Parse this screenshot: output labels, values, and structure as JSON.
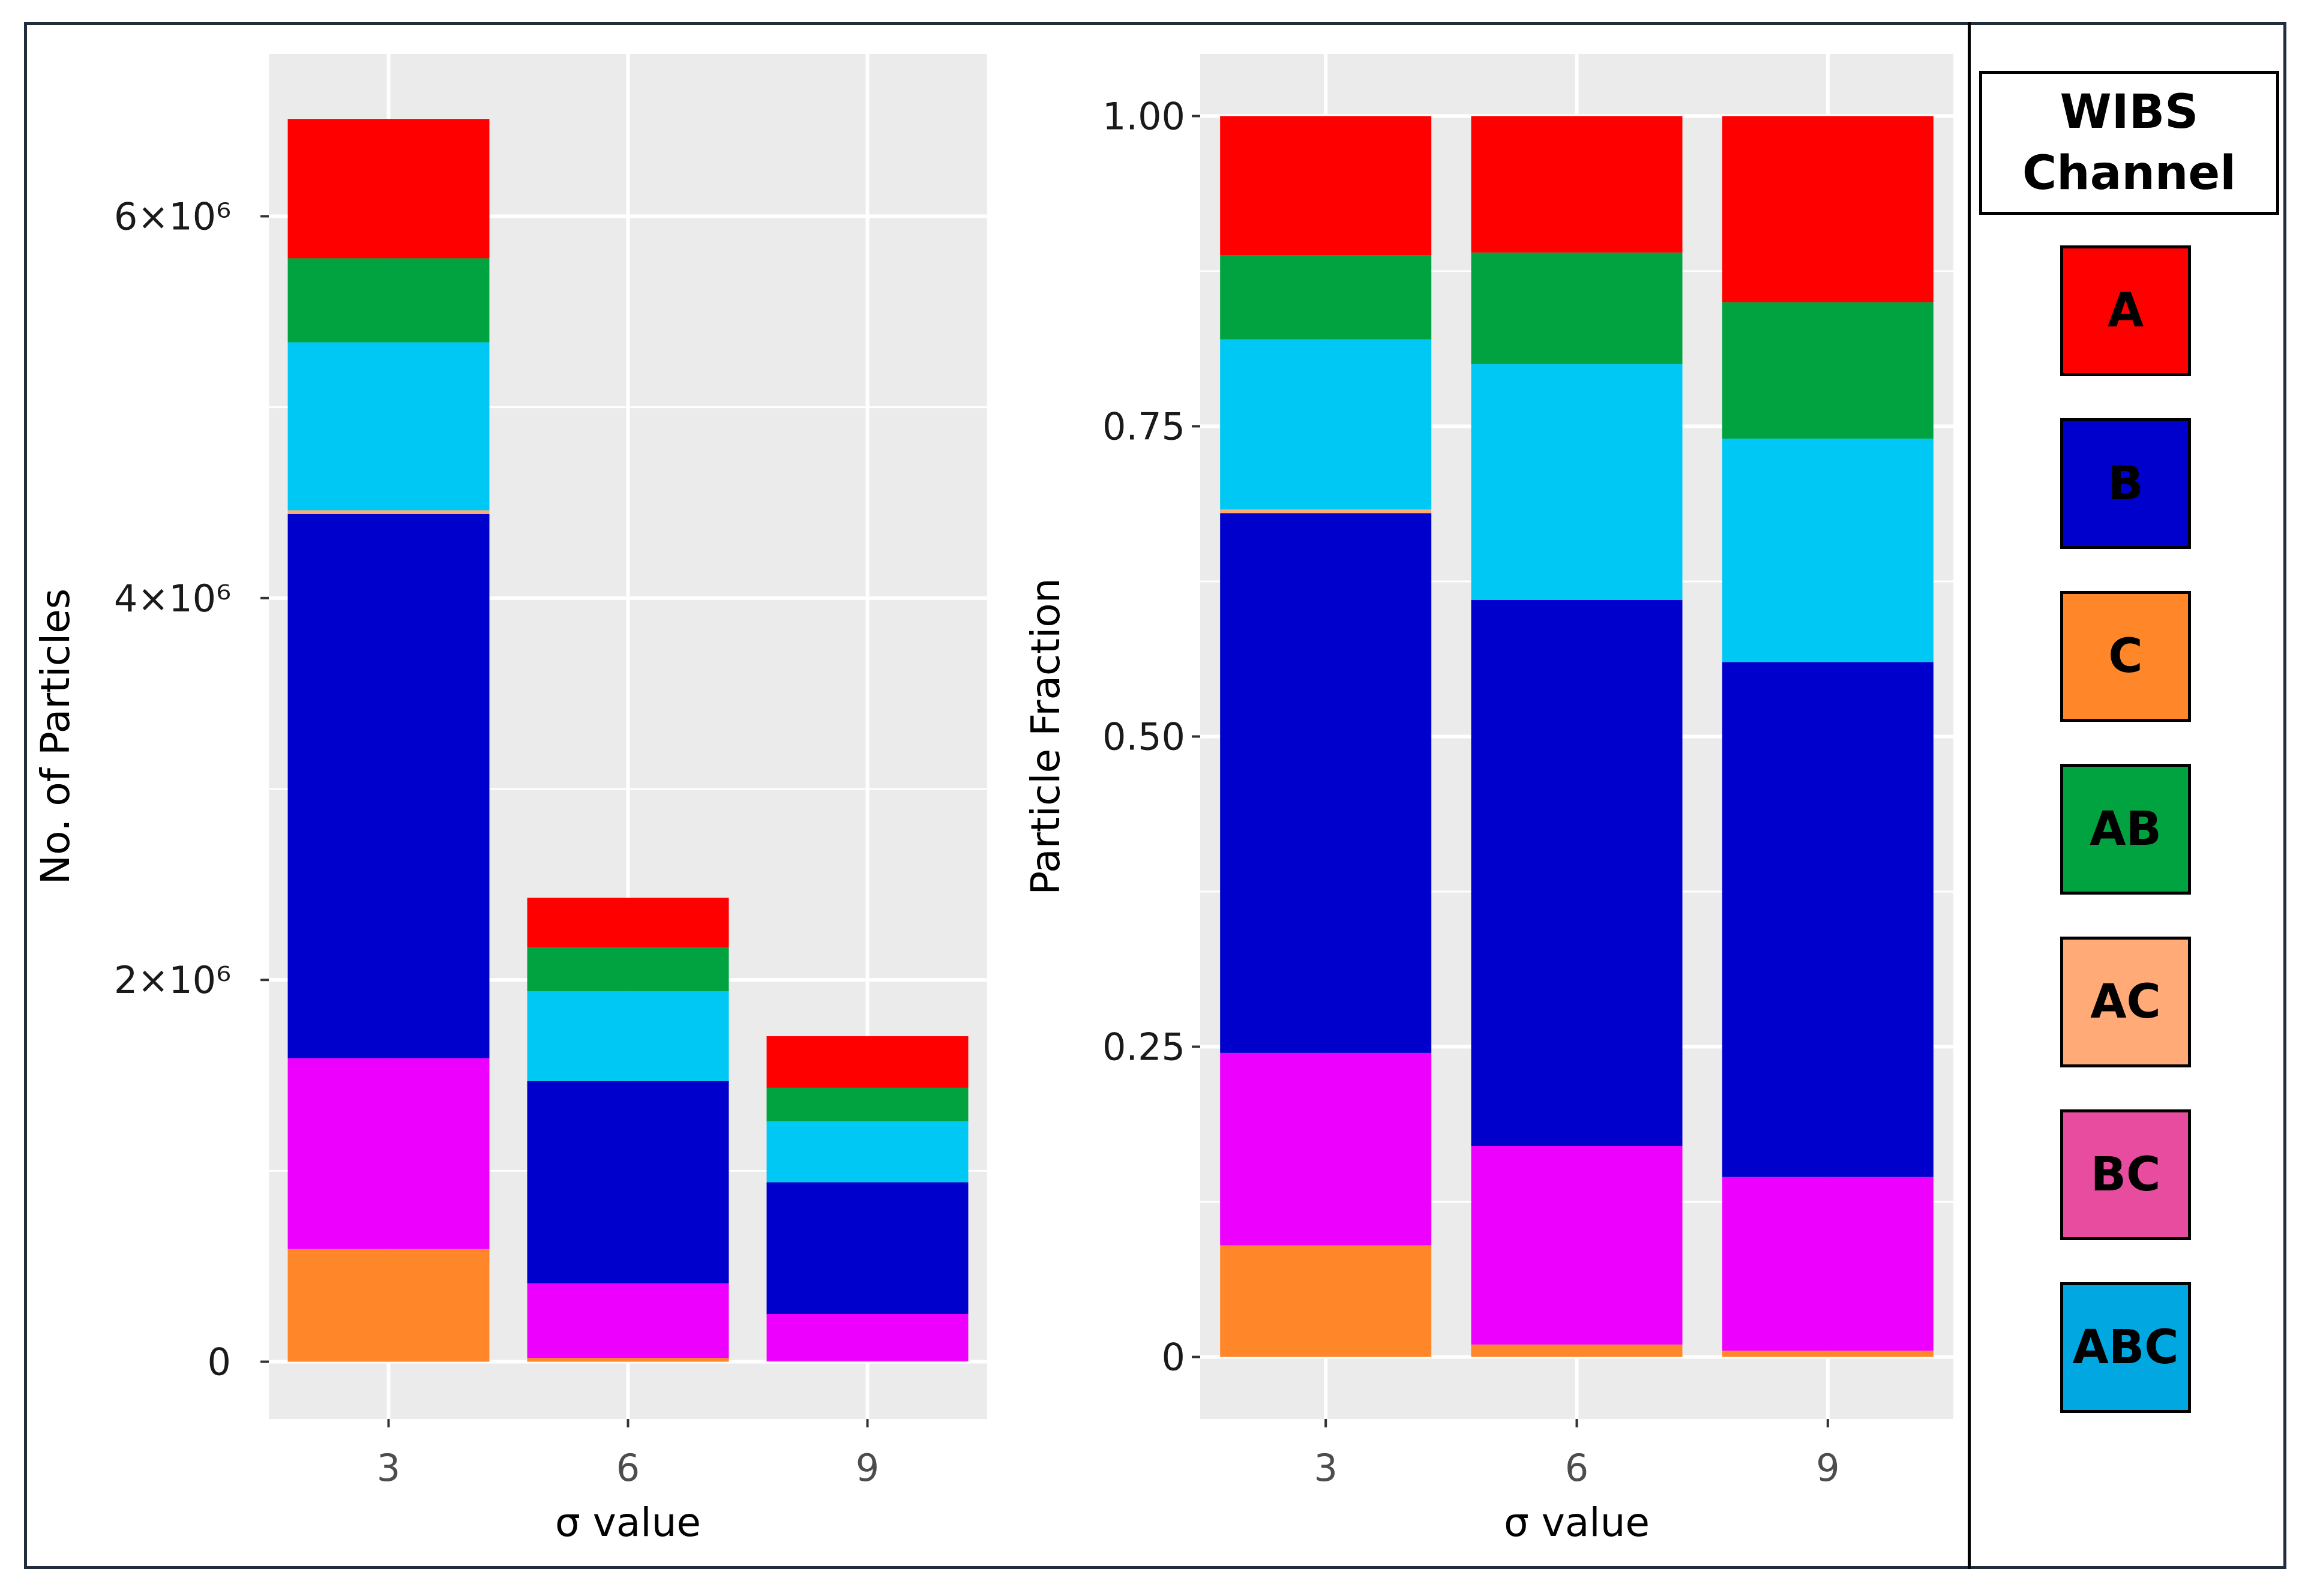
{
  "legend": {
    "title": "WIBS\nChannel",
    "items": [
      {
        "label": "A",
        "color": "#FF0000"
      },
      {
        "label": "B",
        "color": "#0000CC"
      },
      {
        "label": "C",
        "color": "#FF8629"
      },
      {
        "label": "AB",
        "color": "#00A33F"
      },
      {
        "label": "AC",
        "color": "#FFAA77"
      },
      {
        "label": "BC",
        "color": "#E84C9E"
      },
      {
        "label": "ABC",
        "color": "#00A7E1"
      }
    ]
  },
  "chart_data": [
    {
      "type": "bar",
      "stacked": true,
      "xlabel": "σ value",
      "ylabel": "No. of Particles",
      "categories": [
        "3",
        "6",
        "9"
      ],
      "ylim": [
        -300000,
        6850000
      ],
      "yticks": [
        0,
        2000000,
        4000000,
        6000000
      ],
      "ytick_labels": [
        "0",
        "2×10⁶",
        "4×10⁶",
        "6×10⁶"
      ],
      "series": [
        {
          "name": "C",
          "color": "#FF8629",
          "values": [
            590000,
            20000,
            5000
          ]
        },
        {
          "name": "BC",
          "color": "#EE00FF",
          "values": [
            1000000,
            390000,
            245000
          ]
        },
        {
          "name": "B",
          "color": "#0000CC",
          "values": [
            2850000,
            1060000,
            690000
          ]
        },
        {
          "name": "AC",
          "color": "#FFAA77",
          "values": [
            20000,
            0,
            0
          ]
        },
        {
          "name": "ABC",
          "color": "#00C8F5",
          "values": [
            880000,
            470000,
            320000
          ]
        },
        {
          "name": "AB",
          "color": "#00A33F",
          "values": [
            440000,
            230000,
            175000
          ]
        },
        {
          "name": "A",
          "color": "#FF0000",
          "values": [
            730000,
            260000,
            270000
          ]
        }
      ]
    },
    {
      "type": "bar",
      "stacked": true,
      "xlabel": "σ value",
      "ylabel": "Particle Fraction",
      "categories": [
        "3",
        "6",
        "9"
      ],
      "ylim": [
        -0.05,
        1.05
      ],
      "yticks": [
        0,
        0.25,
        0.5,
        0.75,
        1.0
      ],
      "ytick_labels": [
        "0",
        "0.25",
        "0.50",
        "0.75",
        "1.00"
      ],
      "series": [
        {
          "name": "C",
          "color": "#FF8629",
          "values": [
            0.09,
            0.01,
            0.005
          ]
        },
        {
          "name": "BC",
          "color": "#EE00FF",
          "values": [
            0.155,
            0.16,
            0.14
          ]
        },
        {
          "name": "B",
          "color": "#0000CC",
          "values": [
            0.435,
            0.44,
            0.415
          ]
        },
        {
          "name": "AC",
          "color": "#FFAA77",
          "values": [
            0.003,
            0.0,
            0.0
          ]
        },
        {
          "name": "ABC",
          "color": "#00C8F5",
          "values": [
            0.137,
            0.19,
            0.18
          ]
        },
        {
          "name": "AB",
          "color": "#00A33F",
          "values": [
            0.068,
            0.09,
            0.11
          ]
        },
        {
          "name": "A",
          "color": "#FF0000",
          "values": [
            0.112,
            0.11,
            0.15
          ]
        }
      ]
    }
  ]
}
